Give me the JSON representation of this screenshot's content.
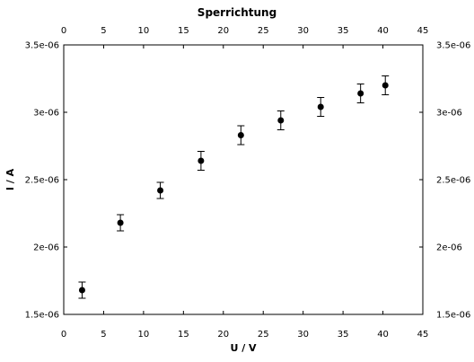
{
  "chart_data": {
    "type": "scatter",
    "title": "Sperrichtung",
    "xlabel": "U / V",
    "ylabel": "I / A",
    "xlim": [
      0,
      45
    ],
    "ylim": [
      1.5e-06,
      3.5e-06
    ],
    "x_ticks": [
      0,
      5,
      10,
      15,
      20,
      25,
      30,
      35,
      40,
      45
    ],
    "x_tick_labels": [
      "0",
      "5",
      "10",
      "15",
      "20",
      "25",
      "30",
      "35",
      "40",
      "45"
    ],
    "y_ticks": [
      1.5e-06,
      2e-06,
      2.5e-06,
      3e-06,
      3.5e-06
    ],
    "y_tick_labels": [
      "1.5e-06",
      "2e-06",
      "2.5e-06",
      "3e-06",
      "3.5e-06"
    ],
    "mirror_axes": true,
    "grid": false,
    "marker_color": "#000000",
    "series": [
      {
        "x": [
          2.3,
          7.1,
          12.1,
          17.2,
          22.2,
          27.2,
          32.2,
          37.2,
          40.3
        ],
        "y": [
          1.68e-06,
          2.18e-06,
          2.42e-06,
          2.64e-06,
          2.83e-06,
          2.94e-06,
          3.04e-06,
          3.14e-06,
          3.2e-06
        ],
        "yerr": [
          6e-08,
          6e-08,
          6e-08,
          7e-08,
          7e-08,
          7e-08,
          7e-08,
          7e-08,
          7e-08
        ]
      }
    ]
  }
}
